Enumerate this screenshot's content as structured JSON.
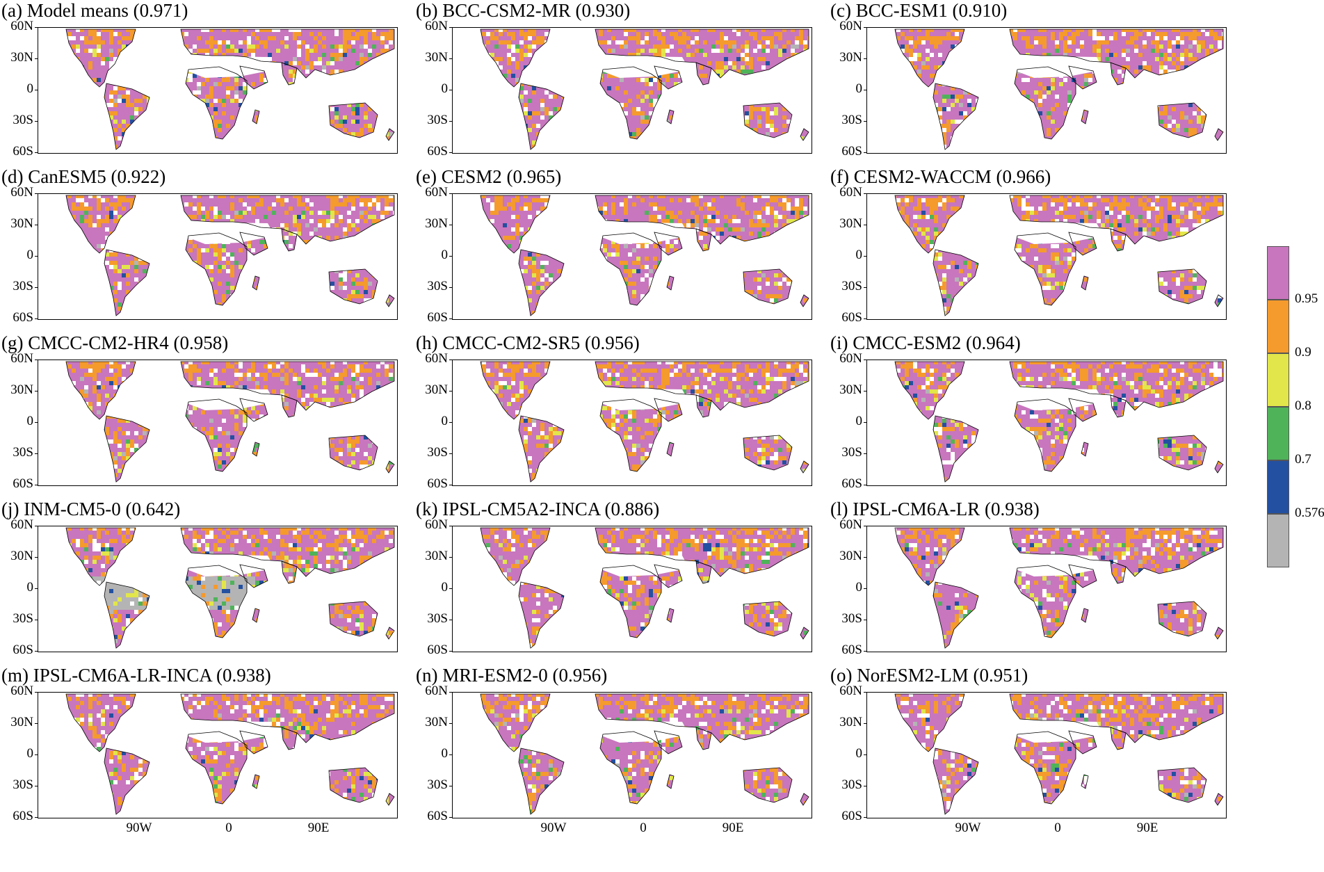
{
  "panels": [
    {
      "title": "(a) Model means (0.971)"
    },
    {
      "title": "(b) BCC-CSM2-MR (0.930)"
    },
    {
      "title": "(c) BCC-ESM1 (0.910)"
    },
    {
      "title": "(d) CanESM5 (0.922)"
    },
    {
      "title": "(e) CESM2 (0.965)"
    },
    {
      "title": "(f) CESM2-WACCM (0.966)"
    },
    {
      "title": "(g) CMCC-CM2-HR4 (0.958)"
    },
    {
      "title": "(h) CMCC-CM2-SR5 (0.956)"
    },
    {
      "title": "(i) CMCC-ESM2 (0.964)"
    },
    {
      "title": "(j) INM-CM5-0 (0.642)"
    },
    {
      "title": "(k) IPSL-CM5A2-INCA (0.886)"
    },
    {
      "title": "(l) IPSL-CM6A-LR (0.938)"
    },
    {
      "title": "(m) IPSL-CM6A-LR-INCA (0.938)"
    },
    {
      "title": "(n) MRI-ESM2-0 (0.956)"
    },
    {
      "title": "(o) NorESM2-LM (0.951)"
    }
  ],
  "lat_labels": [
    "60N",
    "30N",
    "0",
    "30S",
    "60S"
  ],
  "lon_labels": [
    "90W",
    "0",
    "90E"
  ],
  "legend": {
    "labels": [
      "0.95",
      "0.9",
      "0.8",
      "0.7",
      "0.576"
    ],
    "colors": [
      "#c876be",
      "#f59a2c",
      "#e2e64a",
      "#4fb35a",
      "#2350a0",
      "#b4b4b4"
    ]
  }
}
